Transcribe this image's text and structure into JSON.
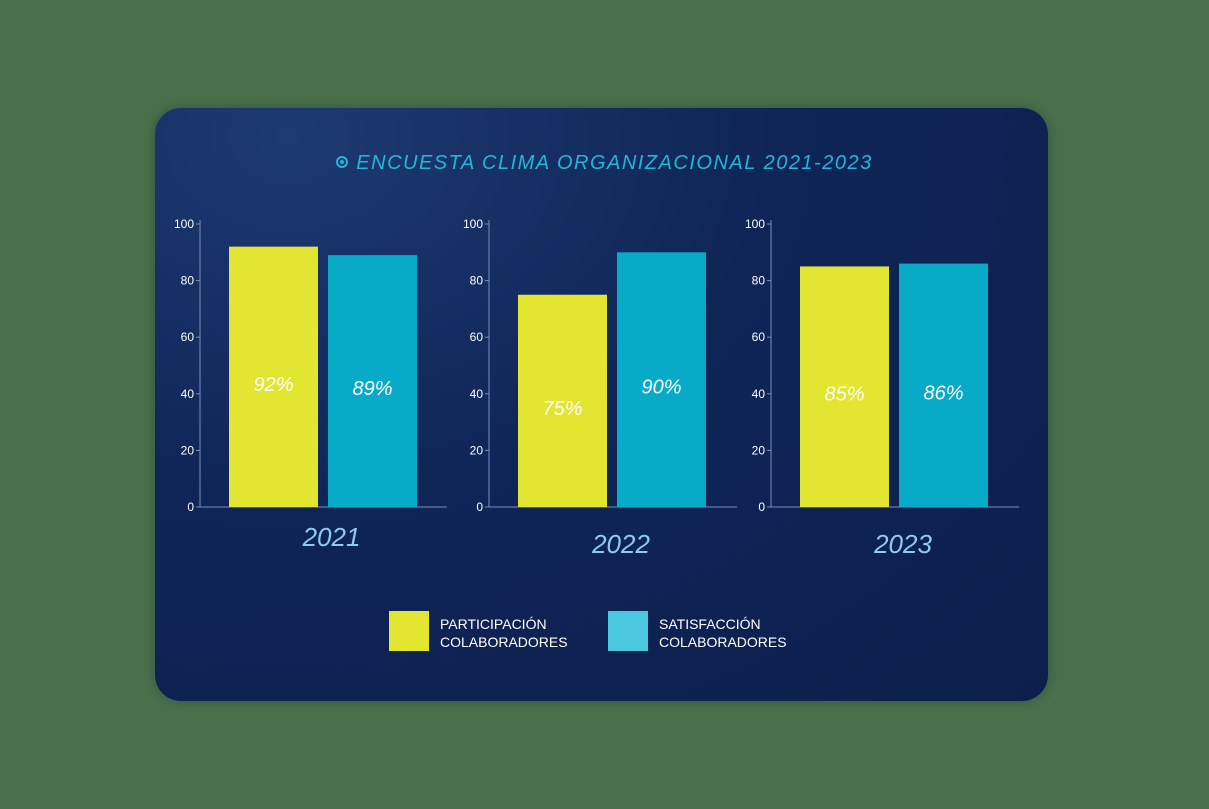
{
  "title": "ENCUESTA CLIMA ORGANIZACIONAL 2021-2023",
  "colors": {
    "participation": "#e3e631",
    "satisfaction": "#08abc7",
    "satisfaction_legend": "#4ac8e0",
    "title": "#22b7d8",
    "year_label": "#8ec9ee",
    "card_background": "#0f2557"
  },
  "legend": {
    "participation": "PARTICIPACIÓN\nCOLABORADORES",
    "satisfaction": "SATISFACCIÓN\nCOLABORADORES"
  },
  "chart_data": [
    {
      "type": "bar",
      "xlabel": "2021",
      "ylim": [
        0,
        100
      ],
      "yticks": [
        0,
        20,
        40,
        60,
        80,
        100
      ],
      "series": [
        {
          "name": "PARTICIPACIÓN COLABORADORES",
          "values": [
            92
          ],
          "labels": [
            "92%"
          ]
        },
        {
          "name": "SATISFACCIÓN COLABORADORES",
          "values": [
            89
          ],
          "labels": [
            "89%"
          ]
        }
      ]
    },
    {
      "type": "bar",
      "xlabel": "2022",
      "ylim": [
        0,
        100
      ],
      "yticks": [
        0,
        20,
        40,
        60,
        80,
        100
      ],
      "series": [
        {
          "name": "PARTICIPACIÓN COLABORADORES",
          "values": [
            75
          ],
          "labels": [
            "75%"
          ]
        },
        {
          "name": "SATISFACCIÓN COLABORADORES",
          "values": [
            90
          ],
          "labels": [
            "90%"
          ]
        }
      ]
    },
    {
      "type": "bar",
      "xlabel": "2023",
      "ylim": [
        0,
        100
      ],
      "yticks": [
        0,
        20,
        40,
        60,
        80,
        100
      ],
      "series": [
        {
          "name": "PARTICIPACIÓN COLABORADORES",
          "values": [
            85
          ],
          "labels": [
            "85%"
          ]
        },
        {
          "name": "SATISFACCIÓN COLABORADORES",
          "values": [
            86
          ],
          "labels": [
            "86%"
          ]
        }
      ]
    }
  ]
}
